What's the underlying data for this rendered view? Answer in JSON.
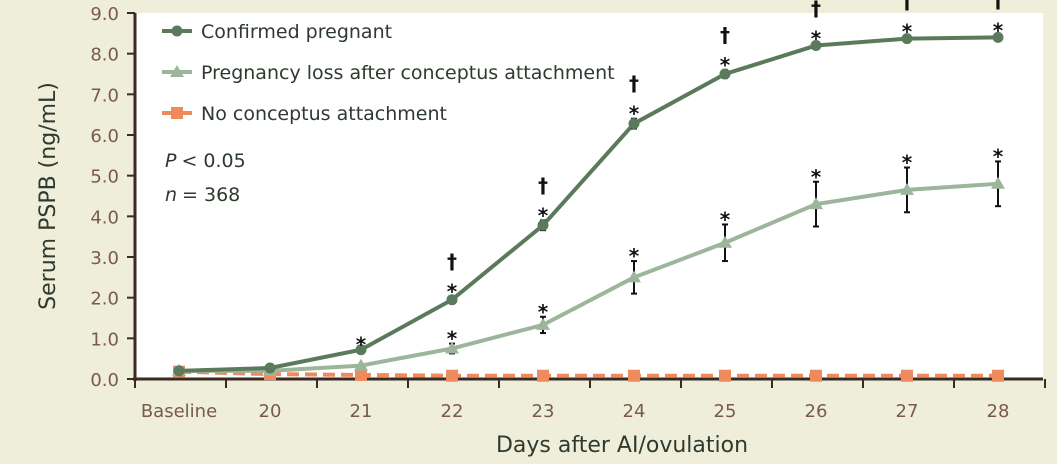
{
  "chart_data": {
    "type": "line",
    "xlabel": "Days after AI/ovulation",
    "ylabel": "Serum PSPB (ng/mL)",
    "categories": [
      "Baseline",
      "20",
      "21",
      "22",
      "23",
      "24",
      "25",
      "26",
      "27",
      "28"
    ],
    "ylim": [
      0,
      9
    ],
    "yticks": [
      "0.0",
      "1.0",
      "2.0",
      "3.0",
      "4.0",
      "5.0",
      "6.0",
      "7.0",
      "8.0",
      "9.0"
    ],
    "legend_position": "top-left",
    "grid": false,
    "annotations": {
      "p_label": "P",
      "p_value": "< 0.05",
      "n_label": "n",
      "n_value": "= 368"
    },
    "series": [
      {
        "name": "Confirmed pregnant",
        "color": "#5b7a5c",
        "marker": "circle",
        "dash": false,
        "values": [
          0.2,
          0.27,
          0.72,
          1.95,
          3.78,
          6.28,
          7.5,
          8.2,
          8.37,
          8.4
        ],
        "errors": [
          0,
          0,
          0,
          0.08,
          0.12,
          0.12,
          0.1,
          0.05,
          0.05,
          0.05
        ],
        "star": [
          false,
          false,
          true,
          true,
          true,
          true,
          true,
          true,
          true,
          true
        ],
        "dagger": [
          false,
          false,
          false,
          true,
          true,
          true,
          true,
          true,
          true,
          true
        ]
      },
      {
        "name": "Pregnancy loss after conceptus attachment",
        "color": "#9db69b",
        "marker": "triangle",
        "dash": false,
        "values": [
          0.2,
          0.2,
          0.33,
          0.75,
          1.33,
          2.5,
          3.35,
          4.3,
          4.65,
          4.8
        ],
        "errors": [
          0,
          0,
          0,
          0.12,
          0.2,
          0.4,
          0.45,
          0.55,
          0.55,
          0.55
        ],
        "star": [
          false,
          false,
          false,
          true,
          true,
          true,
          true,
          true,
          true,
          true
        ]
      },
      {
        "name": "No conceptus attachment",
        "color": "#ee8a5e",
        "marker": "square",
        "dash": true,
        "values": [
          0.18,
          0.12,
          0.1,
          0.08,
          0.08,
          0.08,
          0.08,
          0.08,
          0.08,
          0.08
        ],
        "errors": [
          0,
          0,
          0,
          0,
          0,
          0,
          0,
          0,
          0,
          0
        ]
      }
    ],
    "marker_symbols": {
      "star": "*",
      "dagger": "†"
    }
  },
  "colors": {
    "background": "#eeeedb",
    "plot_background": "#ffffff",
    "axis": "#3b2a22"
  }
}
